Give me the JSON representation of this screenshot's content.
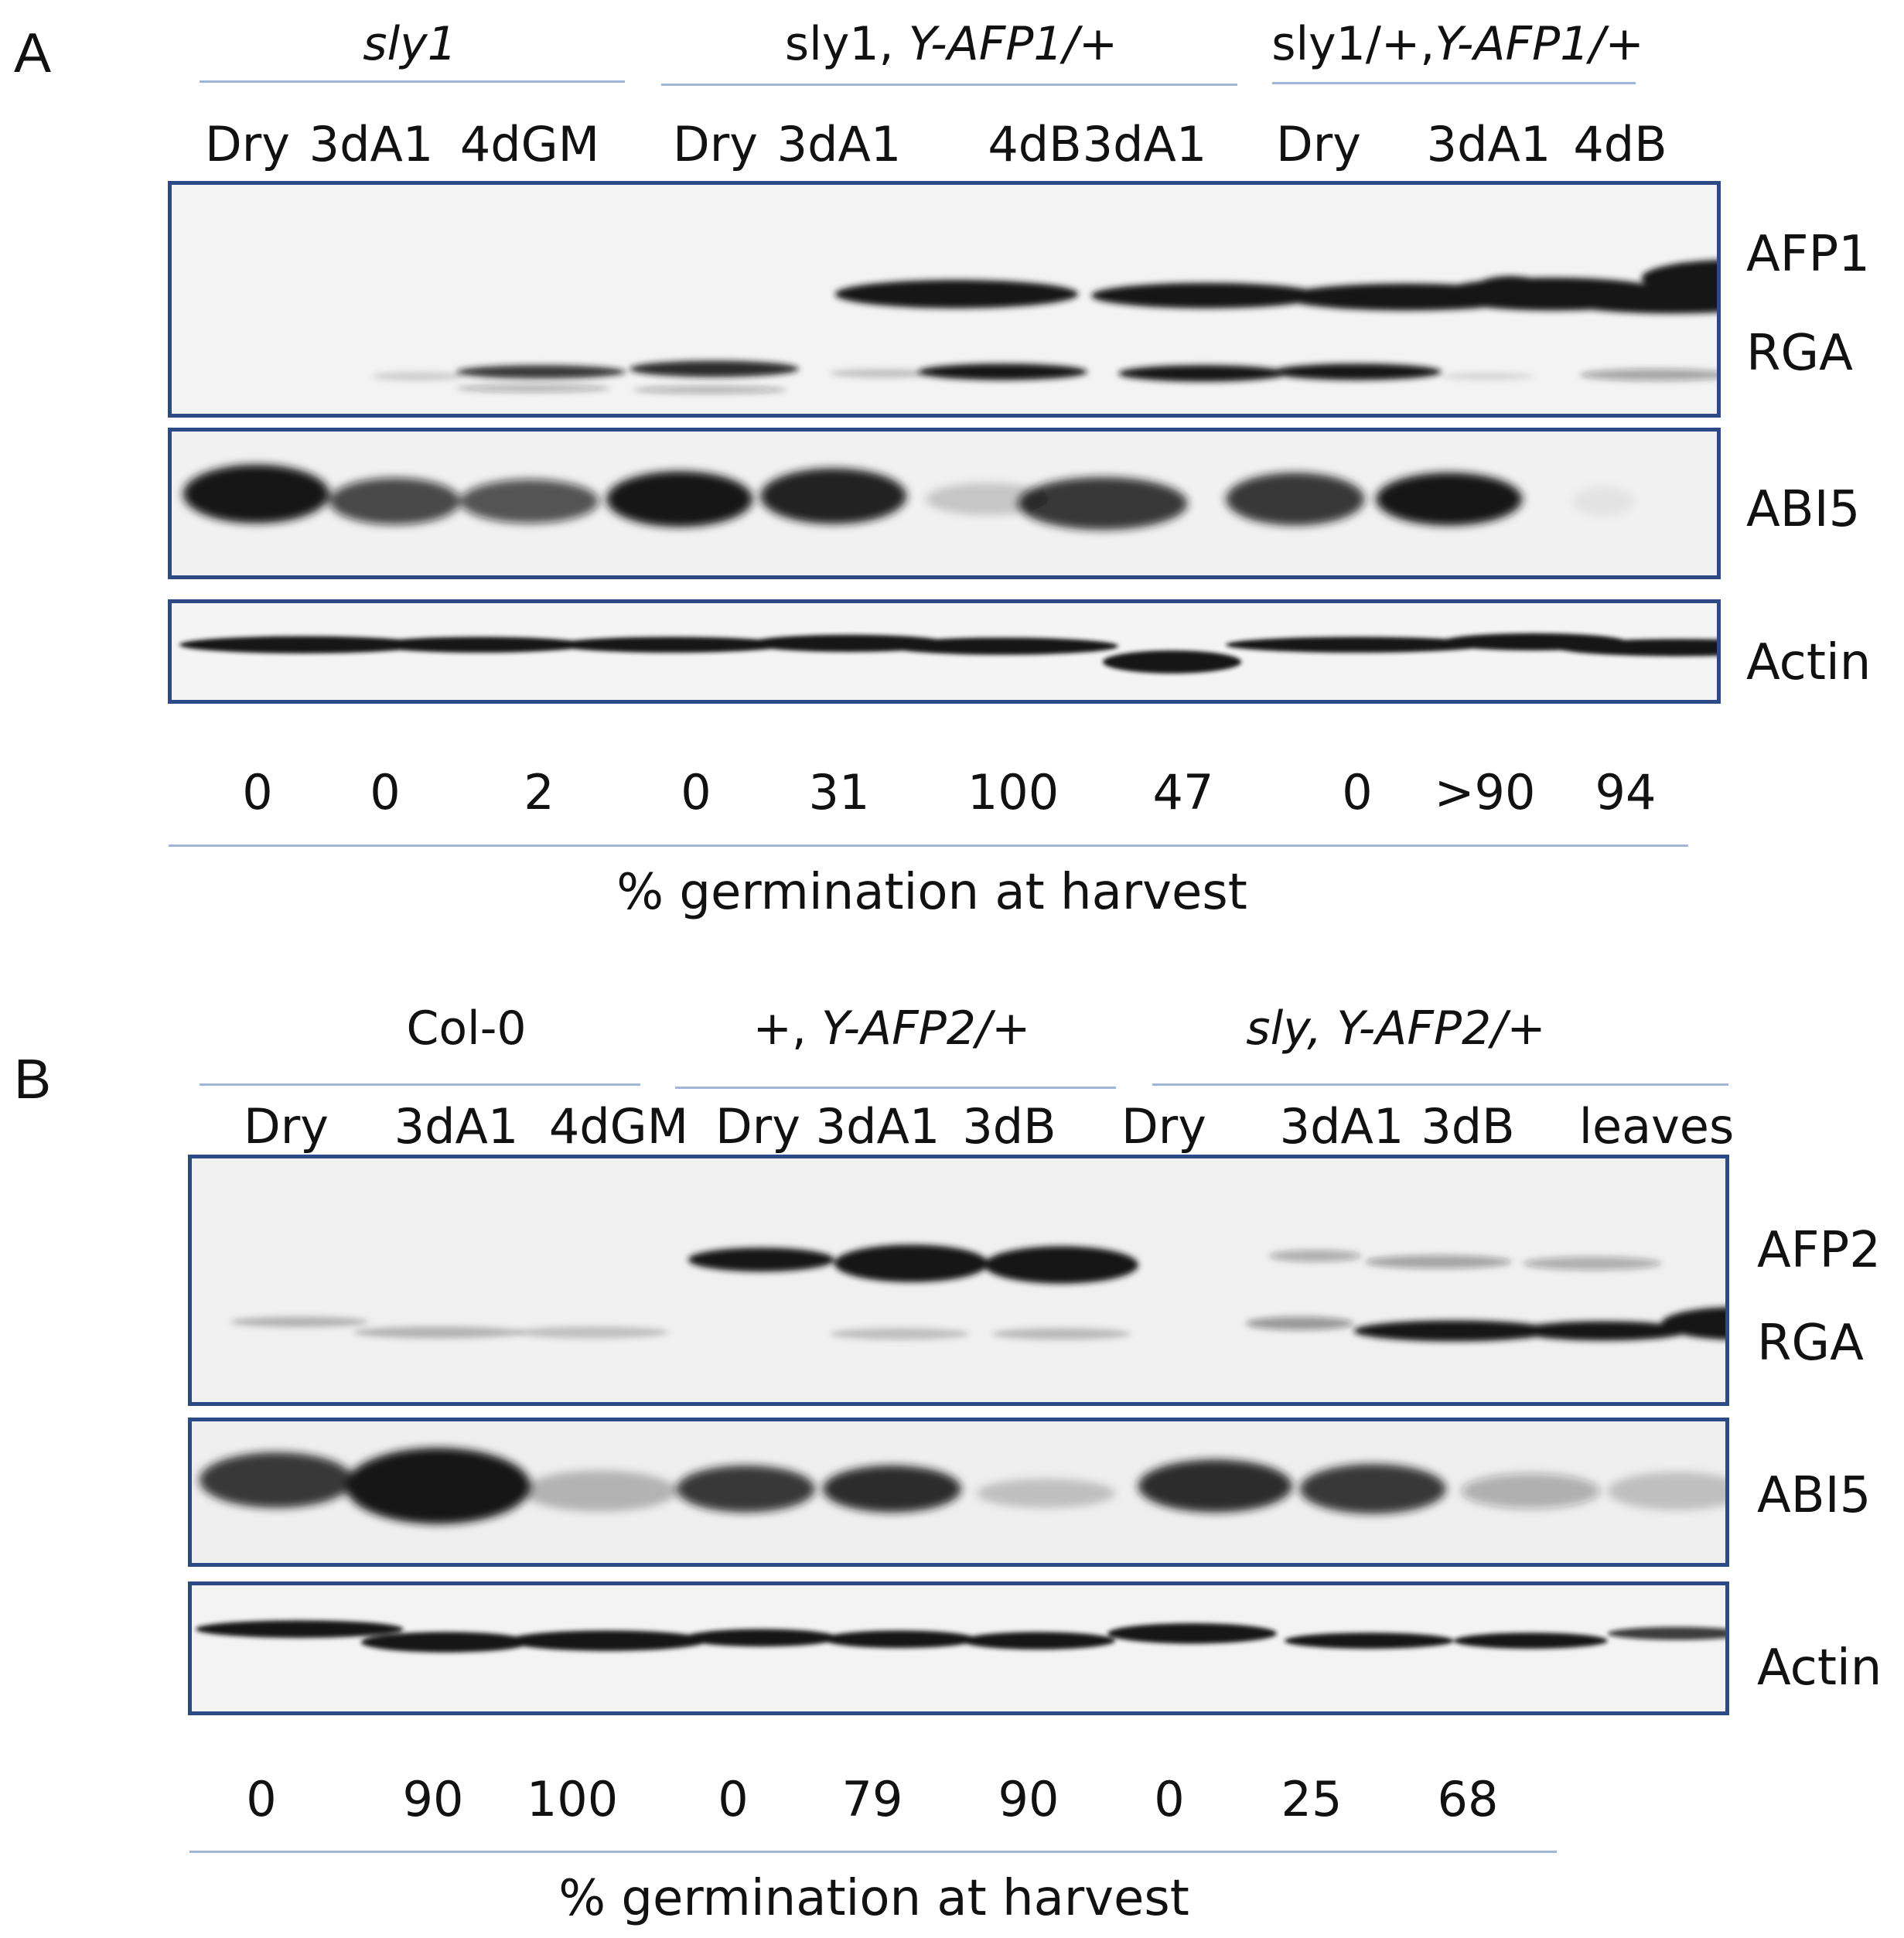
{
  "panel_a": {
    "letter": "A",
    "groups": [
      {
        "label": "sly1"
      },
      {
        "label": "sly1, Y-AFP1/+"
      },
      {
        "label": "sly1/+,Y-AFP1/+"
      }
    ],
    "lanes": [
      "Dry",
      "3dA1",
      "4dGM",
      "Dry",
      "3dA1",
      "4dB",
      "3dA1",
      "Dry",
      "3dA1",
      "4dB"
    ],
    "blot_labels": {
      "afp": "AFP1",
      "rga": "RGA",
      "abi5": "ABI5",
      "actin": "Actin"
    },
    "germination": [
      "0",
      "0",
      "2",
      "0",
      "31",
      "100",
      "47",
      "0",
      ">90",
      "94"
    ],
    "axis_label": "% germination at harvest"
  },
  "panel_b": {
    "letter": "B",
    "groups": [
      {
        "label": "Col-0"
      },
      {
        "label": "+, Y-AFP2/+"
      },
      {
        "label": "sly, Y-AFP2/+"
      }
    ],
    "lanes": [
      "Dry",
      "3dA1",
      "4dGM",
      "Dry",
      "3dA1",
      "3dB",
      "Dry",
      "3dA1",
      "3dB",
      "leaves"
    ],
    "blot_labels": {
      "afp": "AFP2",
      "rga": "RGA",
      "abi5": "ABI5",
      "actin": "Actin"
    },
    "germination": [
      "0",
      "90",
      "100",
      "0",
      "79",
      "90",
      "0",
      "25",
      "68"
    ],
    "axis_label": "% germination at harvest"
  },
  "colors": {
    "frame": "#2c4a85",
    "rule": "#9fb6d8",
    "band": "#141414"
  }
}
